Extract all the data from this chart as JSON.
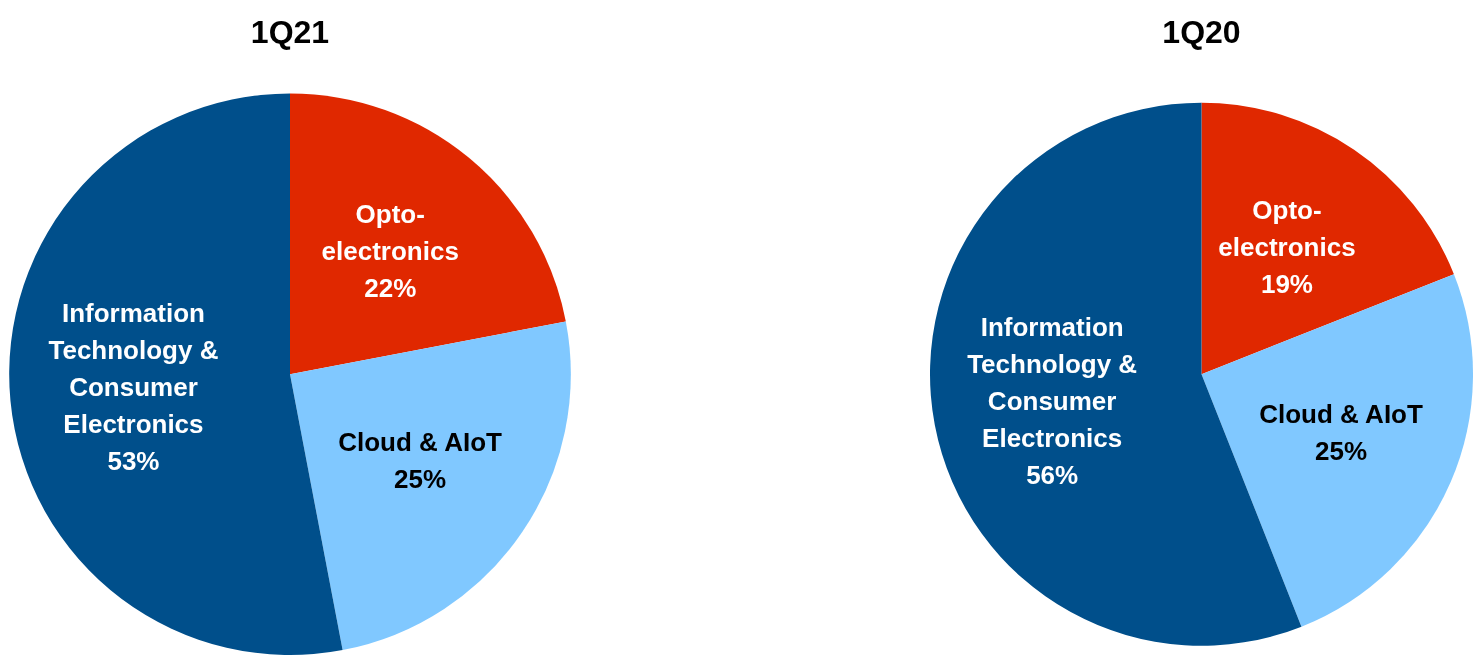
{
  "chart_data": [
    {
      "type": "pie",
      "title": "1Q21",
      "categories": [
        "Opto-electronics",
        "Cloud & AIoT",
        "Information Technology & Consumer Electronics"
      ],
      "values": [
        22,
        25,
        53
      ],
      "value_labels": [
        "22%",
        "25%",
        "53%"
      ],
      "colors": [
        "#e02800",
        "#80c8ff",
        "#004f8b"
      ],
      "legend": false
    },
    {
      "type": "pie",
      "title": "1Q20",
      "categories": [
        "Opto-electronics",
        "Cloud & AIoT",
        "Information Technology & Consumer Electronics"
      ],
      "values": [
        19,
        25,
        56
      ],
      "value_labels": [
        "19%",
        "25%",
        "56%"
      ],
      "colors": [
        "#e02800",
        "#80c8ff",
        "#004f8b"
      ],
      "legend": false
    }
  ]
}
